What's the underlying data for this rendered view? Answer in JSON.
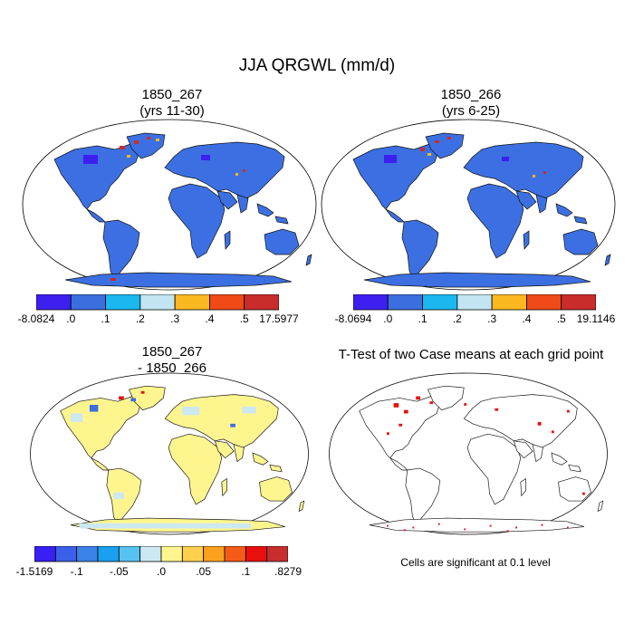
{
  "title": "JJA QRGWL (mm/d)",
  "panels": [
    {
      "title_line1": "1850_267",
      "title_line2": "(yrs 11-30)"
    },
    {
      "title_line1": "1850_266",
      "title_line2": "(yrs 6-25)"
    },
    {
      "title_line1": "1850_267",
      "title_line2": "- 1850_266"
    },
    {
      "title_line1": "T-Test of two Case means at each grid point",
      "title_line2": ""
    }
  ],
  "colorbars": [
    {
      "labels": [
        "-8.0824",
        ".0",
        ".1",
        ".2",
        ".3",
        ".4",
        ".5",
        "17.5977"
      ],
      "colors": [
        "#3d1ff0",
        "#3b6fe0",
        "#1ab8ee",
        "#c3e4f2",
        "#fbb820",
        "#ef4a17",
        "#ca2b2b"
      ]
    },
    {
      "labels": [
        "-8.0694",
        ".0",
        ".1",
        ".2",
        ".3",
        ".4",
        ".5",
        "19.1146"
      ],
      "colors": [
        "#3d1ff0",
        "#3b6fe0",
        "#1ab8ee",
        "#c3e4f2",
        "#fbb820",
        "#ef4a17",
        "#ca2b2b"
      ]
    },
    {
      "labels": [
        "-1.5169",
        "-.1",
        "-.05",
        ".0",
        ".05",
        ".1",
        ".8279"
      ],
      "colors": [
        "#3a1ff5",
        "#3b5fe8",
        "#3b82e8",
        "#1aa0ee",
        "#57c3f0",
        "#cce8f2",
        "#fff58f",
        "#fed04d",
        "#fba11f",
        "#f55b16",
        "#e8100c",
        "#c72e2e"
      ]
    }
  ],
  "note": "Cells are significant at 0.1 level"
}
